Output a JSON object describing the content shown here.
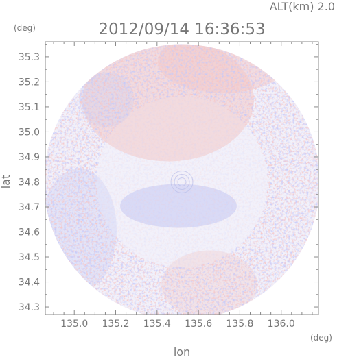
{
  "header": {
    "altitude_label": "ALT(km) 2.0",
    "timestamp": "2012/09/14 16:36:53"
  },
  "chart_data": {
    "type": "heatmap",
    "title": "2012/09/14 16:36:53",
    "xlabel": "lon",
    "ylabel": "lat",
    "xunit": "(deg)",
    "yunit": "(deg)",
    "xlim": [
      134.86,
      136.18
    ],
    "ylim": [
      34.27,
      35.36
    ],
    "x_ticks": [
      "135.0",
      "135.2",
      "135.4",
      "135.6",
      "135.8",
      "136.0"
    ],
    "x_tick_values": [
      135.0,
      135.2,
      135.4,
      135.6,
      135.8,
      136.0
    ],
    "y_ticks": [
      "34.3",
      "34.4",
      "34.5",
      "34.6",
      "34.7",
      "34.8",
      "34.9",
      "35.0",
      "35.1",
      "35.2",
      "35.3"
    ],
    "y_tick_values": [
      34.3,
      34.4,
      34.5,
      34.6,
      34.7,
      34.8,
      34.9,
      35.0,
      35.1,
      35.2,
      35.3
    ],
    "radar_center": {
      "lon": 135.52,
      "lat": 34.8
    },
    "grid": false,
    "colors": {
      "positive": "#f2c8c8",
      "negative": "#c8ccf4",
      "neutral": "#f2f1fa",
      "axis": "#888888",
      "text": "#777777"
    }
  }
}
